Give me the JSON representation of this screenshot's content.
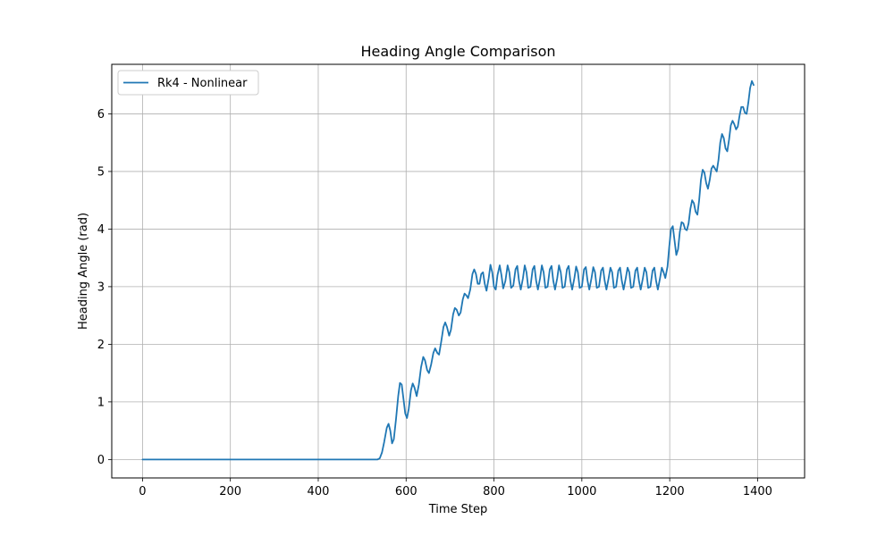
{
  "chart_data": {
    "type": "line",
    "title": "Heading Angle Comparison",
    "xlabel": "Time Step",
    "ylabel": "Heading Angle (rad)",
    "xlim": [
      -70,
      1507
    ],
    "ylim": [
      -0.32,
      6.86
    ],
    "xticks": [
      0,
      200,
      400,
      600,
      800,
      1000,
      1200,
      1400
    ],
    "yticks": [
      0,
      1,
      2,
      3,
      4,
      5,
      6
    ],
    "grid": true,
    "legend_position": "upper-left",
    "series": [
      {
        "name": "Rk4 - Nonlinear",
        "color": "#1f77b4",
        "points": [
          [
            0,
            0
          ],
          [
            100,
            0
          ],
          [
            200,
            0
          ],
          [
            300,
            0
          ],
          [
            400,
            0
          ],
          [
            500,
            0
          ],
          [
            535,
            0
          ],
          [
            540,
            0.02
          ],
          [
            545,
            0.12
          ],
          [
            550,
            0.3
          ],
          [
            556,
            0.55
          ],
          [
            560,
            0.62
          ],
          [
            564,
            0.5
          ],
          [
            568,
            0.28
          ],
          [
            572,
            0.35
          ],
          [
            577,
            0.7
          ],
          [
            582,
            1.1
          ],
          [
            586,
            1.33
          ],
          [
            590,
            1.3
          ],
          [
            594,
            1.05
          ],
          [
            598,
            0.8
          ],
          [
            602,
            0.72
          ],
          [
            606,
            0.88
          ],
          [
            611,
            1.2
          ],
          [
            615,
            1.32
          ],
          [
            619,
            1.25
          ],
          [
            624,
            1.1
          ],
          [
            629,
            1.3
          ],
          [
            634,
            1.6
          ],
          [
            639,
            1.78
          ],
          [
            643,
            1.72
          ],
          [
            648,
            1.55
          ],
          [
            652,
            1.5
          ],
          [
            657,
            1.65
          ],
          [
            662,
            1.85
          ],
          [
            666,
            1.93
          ],
          [
            671,
            1.85
          ],
          [
            675,
            1.82
          ],
          [
            680,
            2.05
          ],
          [
            685,
            2.3
          ],
          [
            689,
            2.38
          ],
          [
            693,
            2.3
          ],
          [
            698,
            2.15
          ],
          [
            702,
            2.25
          ],
          [
            707,
            2.52
          ],
          [
            711,
            2.63
          ],
          [
            715,
            2.6
          ],
          [
            720,
            2.5
          ],
          [
            724,
            2.55
          ],
          [
            729,
            2.78
          ],
          [
            733,
            2.88
          ],
          [
            737,
            2.85
          ],
          [
            741,
            2.8
          ],
          [
            746,
            2.95
          ],
          [
            751,
            3.22
          ],
          [
            755,
            3.3
          ],
          [
            759,
            3.22
          ],
          [
            763,
            3.05
          ],
          [
            767,
            3.05
          ],
          [
            771,
            3.22
          ],
          [
            775,
            3.25
          ],
          [
            779,
            3.05
          ],
          [
            783,
            2.93
          ],
          [
            788,
            3.15
          ],
          [
            792,
            3.38
          ],
          [
            796,
            3.25
          ],
          [
            800,
            3.0
          ],
          [
            804,
            2.95
          ],
          [
            808,
            3.2
          ],
          [
            813,
            3.37
          ],
          [
            817,
            3.2
          ],
          [
            821,
            2.97
          ],
          [
            826,
            3.1
          ],
          [
            831,
            3.37
          ],
          [
            835,
            3.25
          ],
          [
            839,
            2.98
          ],
          [
            844,
            3.02
          ],
          [
            849,
            3.3
          ],
          [
            853,
            3.36
          ],
          [
            857,
            3.1
          ],
          [
            861,
            2.95
          ],
          [
            866,
            3.15
          ],
          [
            870,
            3.37
          ],
          [
            874,
            3.25
          ],
          [
            878,
            2.98
          ],
          [
            883,
            3.0
          ],
          [
            888,
            3.3
          ],
          [
            892,
            3.36
          ],
          [
            896,
            3.1
          ],
          [
            900,
            2.95
          ],
          [
            905,
            3.15
          ],
          [
            909,
            3.37
          ],
          [
            913,
            3.25
          ],
          [
            917,
            2.98
          ],
          [
            922,
            3.0
          ],
          [
            927,
            3.3
          ],
          [
            931,
            3.36
          ],
          [
            935,
            3.1
          ],
          [
            939,
            2.95
          ],
          [
            944,
            3.15
          ],
          [
            948,
            3.37
          ],
          [
            952,
            3.25
          ],
          [
            956,
            2.98
          ],
          [
            961,
            3.0
          ],
          [
            966,
            3.3
          ],
          [
            970,
            3.36
          ],
          [
            974,
            3.1
          ],
          [
            978,
            2.95
          ],
          [
            983,
            3.15
          ],
          [
            987,
            3.35
          ],
          [
            991,
            3.25
          ],
          [
            995,
            2.98
          ],
          [
            1000,
            3.0
          ],
          [
            1005,
            3.3
          ],
          [
            1009,
            3.34
          ],
          [
            1013,
            3.1
          ],
          [
            1017,
            2.95
          ],
          [
            1022,
            3.15
          ],
          [
            1026,
            3.34
          ],
          [
            1030,
            3.25
          ],
          [
            1034,
            2.98
          ],
          [
            1039,
            3.0
          ],
          [
            1044,
            3.28
          ],
          [
            1048,
            3.33
          ],
          [
            1052,
            3.1
          ],
          [
            1056,
            2.95
          ],
          [
            1061,
            3.15
          ],
          [
            1065,
            3.33
          ],
          [
            1069,
            3.25
          ],
          [
            1073,
            2.98
          ],
          [
            1078,
            3.0
          ],
          [
            1083,
            3.28
          ],
          [
            1087,
            3.33
          ],
          [
            1091,
            3.1
          ],
          [
            1095,
            2.95
          ],
          [
            1100,
            3.15
          ],
          [
            1104,
            3.33
          ],
          [
            1108,
            3.25
          ],
          [
            1112,
            2.98
          ],
          [
            1117,
            3.0
          ],
          [
            1122,
            3.28
          ],
          [
            1126,
            3.33
          ],
          [
            1130,
            3.1
          ],
          [
            1134,
            2.95
          ],
          [
            1139,
            3.15
          ],
          [
            1143,
            3.33
          ],
          [
            1147,
            3.25
          ],
          [
            1151,
            2.98
          ],
          [
            1156,
            3.0
          ],
          [
            1161,
            3.28
          ],
          [
            1165,
            3.33
          ],
          [
            1169,
            3.1
          ],
          [
            1173,
            2.95
          ],
          [
            1178,
            3.15
          ],
          [
            1182,
            3.33
          ],
          [
            1186,
            3.25
          ],
          [
            1190,
            3.15
          ],
          [
            1195,
            3.35
          ],
          [
            1199,
            3.7
          ],
          [
            1203,
            4.0
          ],
          [
            1207,
            4.05
          ],
          [
            1211,
            3.8
          ],
          [
            1215,
            3.55
          ],
          [
            1219,
            3.65
          ],
          [
            1223,
            3.95
          ],
          [
            1227,
            4.12
          ],
          [
            1231,
            4.1
          ],
          [
            1235,
            4.0
          ],
          [
            1239,
            3.98
          ],
          [
            1243,
            4.1
          ],
          [
            1247,
            4.35
          ],
          [
            1251,
            4.5
          ],
          [
            1255,
            4.45
          ],
          [
            1259,
            4.3
          ],
          [
            1263,
            4.25
          ],
          [
            1267,
            4.5
          ],
          [
            1271,
            4.85
          ],
          [
            1275,
            5.03
          ],
          [
            1279,
            4.98
          ],
          [
            1283,
            4.8
          ],
          [
            1287,
            4.7
          ],
          [
            1291,
            4.85
          ],
          [
            1295,
            5.05
          ],
          [
            1299,
            5.1
          ],
          [
            1303,
            5.05
          ],
          [
            1307,
            5.0
          ],
          [
            1311,
            5.2
          ],
          [
            1315,
            5.5
          ],
          [
            1319,
            5.65
          ],
          [
            1323,
            5.58
          ],
          [
            1327,
            5.4
          ],
          [
            1331,
            5.35
          ],
          [
            1335,
            5.55
          ],
          [
            1339,
            5.8
          ],
          [
            1343,
            5.88
          ],
          [
            1347,
            5.82
          ],
          [
            1351,
            5.73
          ],
          [
            1355,
            5.78
          ],
          [
            1359,
            5.97
          ],
          [
            1363,
            6.12
          ],
          [
            1367,
            6.12
          ],
          [
            1371,
            6.02
          ],
          [
            1375,
            6.0
          ],
          [
            1379,
            6.2
          ],
          [
            1383,
            6.45
          ],
          [
            1387,
            6.57
          ],
          [
            1391,
            6.5
          ]
        ]
      }
    ]
  }
}
